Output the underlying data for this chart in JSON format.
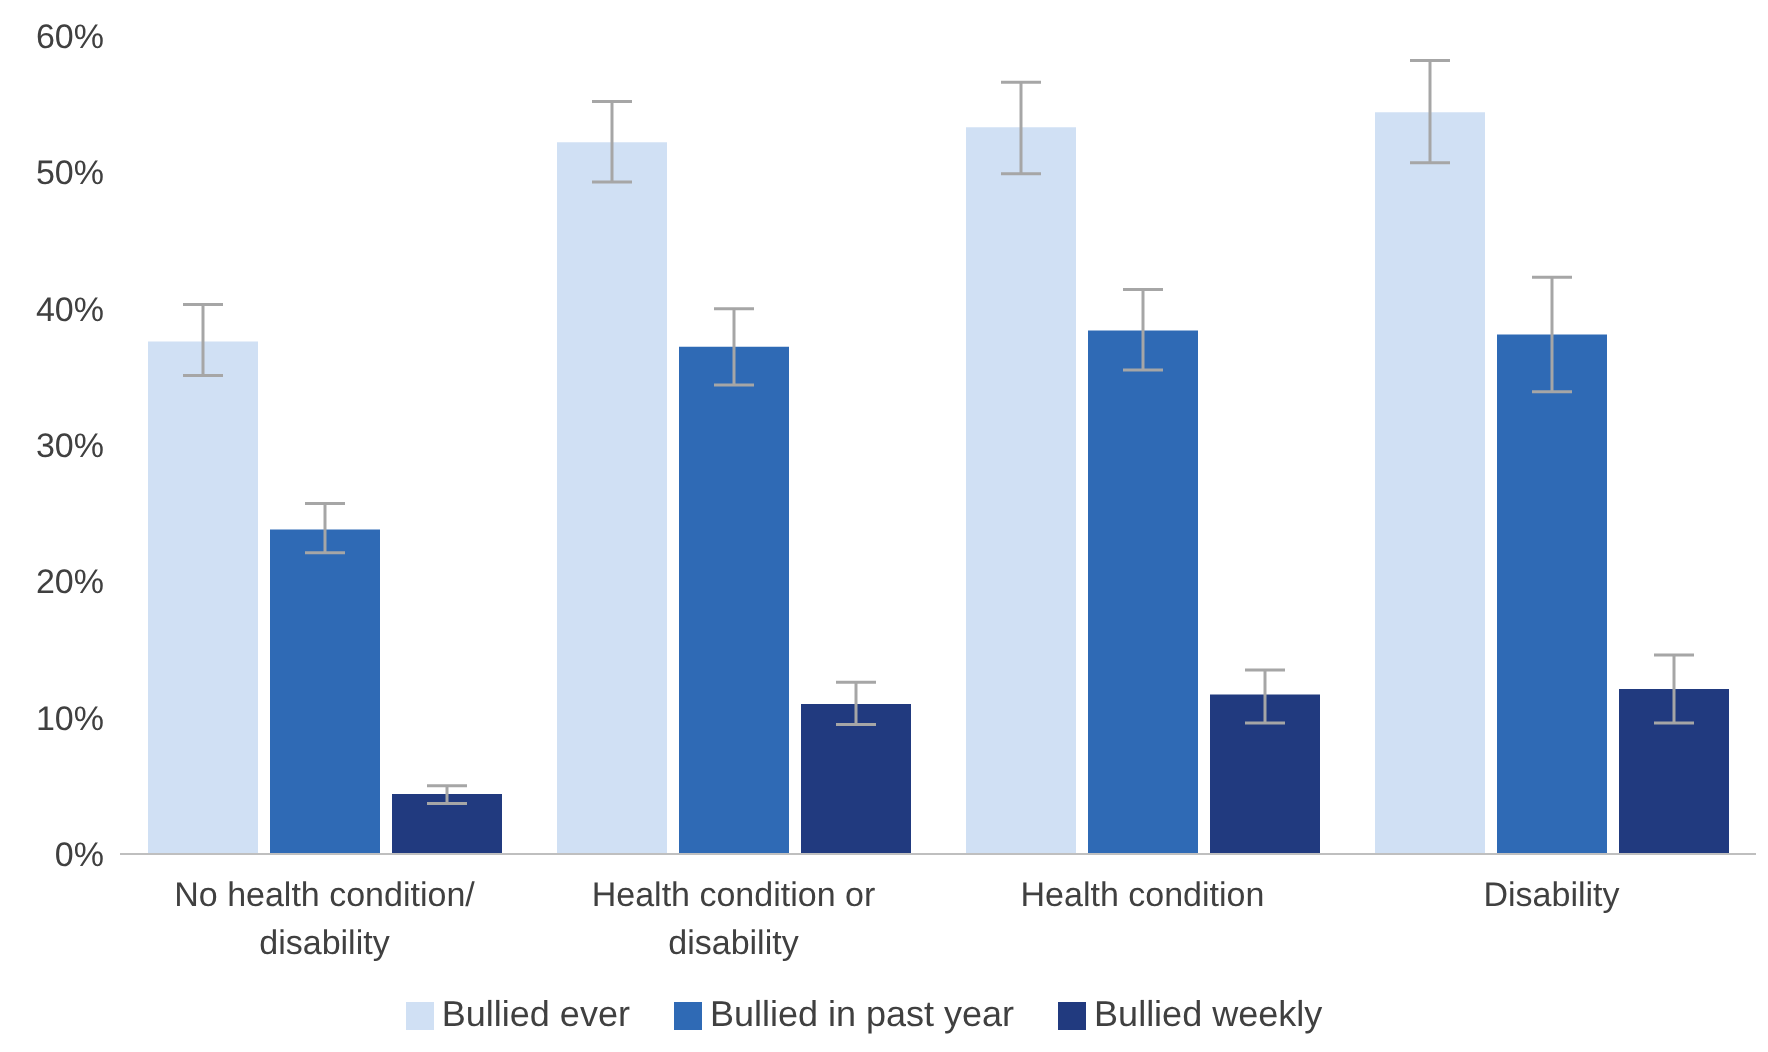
{
  "chart_data": {
    "type": "bar",
    "categories": [
      "No health condition/ disability",
      "Health condition or disability",
      "Health condition",
      "Disability"
    ],
    "series": [
      {
        "name": "Bullied ever",
        "color": "#d0e0f4",
        "values": [
          37.6,
          52.2,
          53.3,
          54.4
        ],
        "errors": [
          [
            35.1,
            40.3
          ],
          [
            49.3,
            55.2
          ],
          [
            49.9,
            56.6
          ],
          [
            50.7,
            58.2
          ]
        ]
      },
      {
        "name": "Bullied in past year",
        "color": "#2f6ab5",
        "values": [
          23.8,
          37.2,
          38.4,
          38.1
        ],
        "errors": [
          [
            22.1,
            25.7
          ],
          [
            34.4,
            40.0
          ],
          [
            35.5,
            41.4
          ],
          [
            33.9,
            42.3
          ]
        ]
      },
      {
        "name": "Bullied weekly",
        "color": "#213a7f",
        "values": [
          4.4,
          11.0,
          11.7,
          12.1
        ],
        "errors": [
          [
            3.7,
            5.0
          ],
          [
            9.5,
            12.6
          ],
          [
            9.6,
            13.5
          ],
          [
            9.6,
            14.6
          ]
        ]
      }
    ],
    "ylim": [
      0,
      60
    ],
    "yticks": [
      {
        "value": 0,
        "label": "0%"
      },
      {
        "value": 10,
        "label": "10%"
      },
      {
        "value": 20,
        "label": "20%"
      },
      {
        "value": 30,
        "label": "30%"
      },
      {
        "value": 40,
        "label": "40%"
      },
      {
        "value": 50,
        "label": "50%"
      },
      {
        "value": 60,
        "label": "60%"
      }
    ],
    "grid": false,
    "legend": "bottom"
  }
}
